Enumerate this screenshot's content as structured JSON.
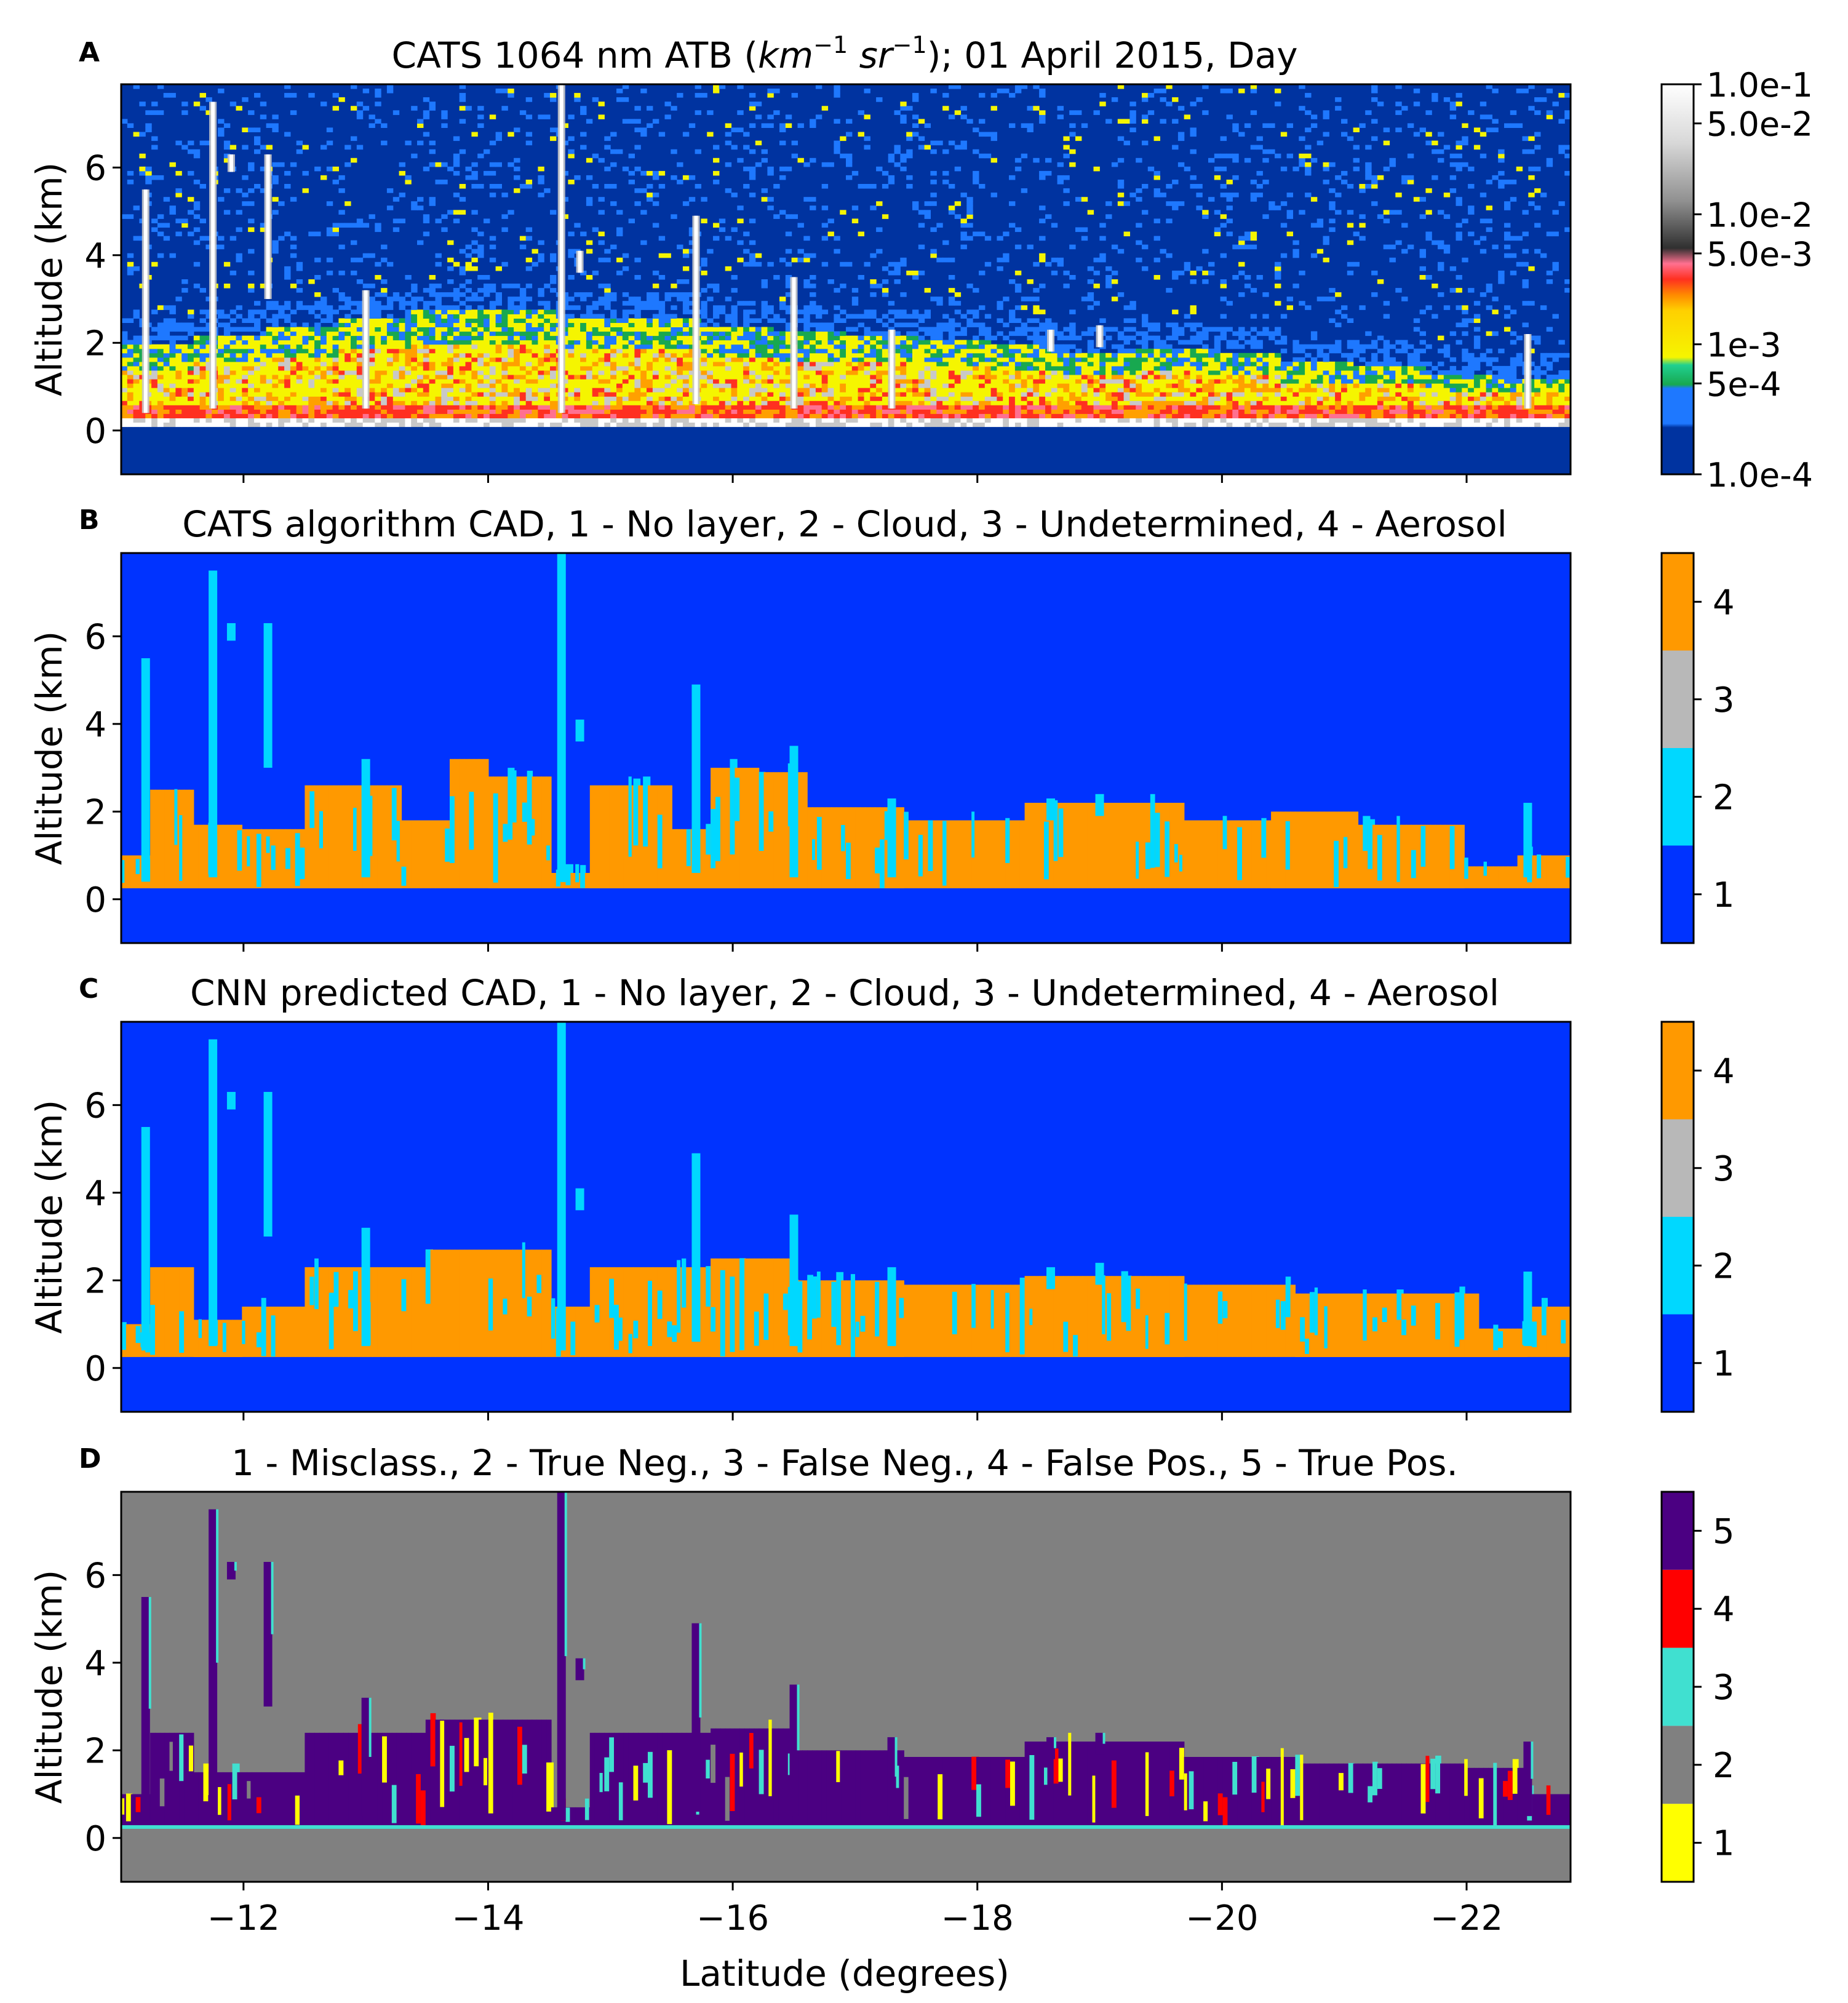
{
  "figure": {
    "xlabel": "Latitude (degrees)",
    "xticks": [
      -12,
      -14,
      -16,
      -18,
      -20,
      -22
    ],
    "xtick_labels": [
      "−12",
      "−14",
      "−16",
      "−18",
      "−20",
      "−22"
    ],
    "xlim": [
      -11,
      -22.85
    ],
    "ylabel": "Altitude (km)",
    "yticks": [
      0,
      2,
      4,
      6
    ],
    "ylim": [
      -1,
      7.9
    ]
  },
  "panels": [
    {
      "letter": "A",
      "title_pre": "CATS 1064 nm ATB (",
      "title_km": "km",
      "title_km_exp": "−1",
      "title_sr": "sr",
      "title_sr_exp": "−1",
      "title_post": "); 01 April 2015, Day",
      "colorbar_labels": [
        "1.0e-1",
        "5.0e-2",
        "1.0e-2",
        "5.0e-3",
        "1e-3",
        "5e-4",
        "1.0e-4"
      ]
    },
    {
      "letter": "B",
      "title": "CATS algorithm CAD, 1 - No layer, 2 - Cloud, 3 - Undetermined, 4 - Aerosol",
      "colorbar_labels": [
        "1",
        "2",
        "3",
        "4"
      ]
    },
    {
      "letter": "C",
      "title": "CNN predicted CAD, 1 - No layer, 2 - Cloud, 3 - Undetermined, 4 - Aerosol",
      "colorbar_labels": [
        "1",
        "2",
        "3",
        "4"
      ]
    },
    {
      "letter": "D",
      "title": "1 - Misclass., 2 - True Neg., 3 - False Neg., 4 - False Pos., 5 - True Pos.",
      "colorbar_labels": [
        "1",
        "2",
        "3",
        "4",
        "5"
      ]
    }
  ],
  "chart_data": [
    {
      "type": "heatmap",
      "panel": "A",
      "variable": "attenuated total backscatter, 1064 nm",
      "x_range": [
        -11,
        -22.85
      ],
      "y_range": [
        -1,
        7.9
      ],
      "scale": "log",
      "colorbar_ticks": [
        0.1,
        0.05,
        0.01,
        0.005,
        0.001,
        0.0005,
        0.0001
      ],
      "colors": [
        "#0033a0",
        "#1e78ff",
        "#18a850",
        "#f5f500",
        "#ffa000",
        "#ff3020",
        "#ff7090",
        "#606060",
        "#c8c8c8",
        "#ffffff"
      ],
      "aerosol_layer_top_km": [
        2.0,
        2.2,
        2.4,
        2.6,
        2.8,
        2.8,
        2.6,
        2.6,
        2.4,
        2.3,
        2.2,
        2.1,
        2.0,
        1.8,
        1.9,
        1.8,
        1.6,
        1.5,
        1.3,
        1.2
      ],
      "cloud_features": [
        {
          "lat": -11.2,
          "alt_bottom": 0.4,
          "alt_top": 5.5
        },
        {
          "lat": -11.75,
          "alt_bottom": 0.5,
          "alt_top": 7.5
        },
        {
          "lat": -11.9,
          "alt_bottom": 5.9,
          "alt_top": 6.3
        },
        {
          "lat": -12.2,
          "alt_bottom": 3.0,
          "alt_top": 6.3
        },
        {
          "lat": -13.0,
          "alt_bottom": 0.5,
          "alt_top": 3.2
        },
        {
          "lat": -14.6,
          "alt_bottom": 0.4,
          "alt_top": 7.9
        },
        {
          "lat": -14.75,
          "alt_bottom": 3.6,
          "alt_top": 4.1
        },
        {
          "lat": -15.7,
          "alt_bottom": 0.6,
          "alt_top": 4.9
        },
        {
          "lat": -16.5,
          "alt_bottom": 0.5,
          "alt_top": 3.5
        },
        {
          "lat": -17.3,
          "alt_bottom": 0.5,
          "alt_top": 2.3
        },
        {
          "lat": -18.6,
          "alt_bottom": 1.8,
          "alt_top": 2.3
        },
        {
          "lat": -19.0,
          "alt_bottom": 1.9,
          "alt_top": 2.4
        },
        {
          "lat": -22.5,
          "alt_bottom": 0.5,
          "alt_top": 2.2
        }
      ]
    },
    {
      "type": "heatmap",
      "panel": "B",
      "classes": {
        "1": "No layer",
        "2": "Cloud",
        "3": "Undetermined",
        "4": "Aerosol"
      },
      "colors": [
        "#0033ff",
        "#00d8ff",
        "#b8b8b8",
        "#ff9900"
      ],
      "aerosol_base_km": 0.25,
      "aerosol_top_segments": [
        {
          "lat_from": -11.0,
          "lat_to": -11.25,
          "top_km": 1.0
        },
        {
          "lat_from": -11.25,
          "lat_to": -11.6,
          "top_km": 2.5
        },
        {
          "lat_from": -11.6,
          "lat_to": -12.0,
          "top_km": 1.7
        },
        {
          "lat_from": -12.0,
          "lat_to": -12.5,
          "top_km": 1.6
        },
        {
          "lat_from": -12.5,
          "lat_to": -13.3,
          "top_km": 2.6
        },
        {
          "lat_from": -13.3,
          "lat_to": -13.7,
          "top_km": 1.8
        },
        {
          "lat_from": -13.7,
          "lat_to": -14.0,
          "top_km": 3.2
        },
        {
          "lat_from": -14.0,
          "lat_to": -14.5,
          "top_km": 2.8
        },
        {
          "lat_from": -14.5,
          "lat_to": -14.85,
          "top_km": 0.6
        },
        {
          "lat_from": -14.85,
          "lat_to": -15.5,
          "top_km": 2.6
        },
        {
          "lat_from": -15.5,
          "lat_to": -15.8,
          "top_km": 1.6
        },
        {
          "lat_from": -15.8,
          "lat_to": -16.2,
          "top_km": 3.0
        },
        {
          "lat_from": -16.2,
          "lat_to": -16.6,
          "top_km": 2.9
        },
        {
          "lat_from": -16.6,
          "lat_to": -17.4,
          "top_km": 2.1
        },
        {
          "lat_from": -17.4,
          "lat_to": -18.4,
          "top_km": 1.8
        },
        {
          "lat_from": -18.4,
          "lat_to": -19.7,
          "top_km": 2.2
        },
        {
          "lat_from": -19.7,
          "lat_to": -20.4,
          "top_km": 1.8
        },
        {
          "lat_from": -20.4,
          "lat_to": -21.1,
          "top_km": 2.0
        },
        {
          "lat_from": -21.1,
          "lat_to": -22.0,
          "top_km": 1.7
        },
        {
          "lat_from": -22.0,
          "lat_to": -22.4,
          "top_km": 0.75
        },
        {
          "lat_from": -22.4,
          "lat_to": -22.85,
          "top_km": 1.0
        }
      ]
    },
    {
      "type": "heatmap",
      "panel": "C",
      "classes": {
        "1": "No layer",
        "2": "Cloud",
        "3": "Undetermined",
        "4": "Aerosol"
      },
      "colors": [
        "#0033ff",
        "#00d8ff",
        "#b8b8b8",
        "#ff9900"
      ],
      "aerosol_base_km": 0.25,
      "aerosol_top_segments": [
        {
          "lat_from": -11.0,
          "lat_to": -11.25,
          "top_km": 1.0
        },
        {
          "lat_from": -11.25,
          "lat_to": -11.6,
          "top_km": 2.3
        },
        {
          "lat_from": -11.6,
          "lat_to": -12.0,
          "top_km": 1.1
        },
        {
          "lat_from": -12.0,
          "lat_to": -12.5,
          "top_km": 1.4
        },
        {
          "lat_from": -12.5,
          "lat_to": -13.5,
          "top_km": 2.3
        },
        {
          "lat_from": -13.5,
          "lat_to": -14.5,
          "top_km": 2.7
        },
        {
          "lat_from": -14.5,
          "lat_to": -14.85,
          "top_km": 1.4
        },
        {
          "lat_from": -14.85,
          "lat_to": -15.8,
          "top_km": 2.3
        },
        {
          "lat_from": -15.8,
          "lat_to": -16.5,
          "top_km": 2.5
        },
        {
          "lat_from": -16.5,
          "lat_to": -17.4,
          "top_km": 2.0
        },
        {
          "lat_from": -17.4,
          "lat_to": -18.4,
          "top_km": 1.9
        },
        {
          "lat_from": -18.4,
          "lat_to": -19.7,
          "top_km": 2.1
        },
        {
          "lat_from": -19.7,
          "lat_to": -20.6,
          "top_km": 1.9
        },
        {
          "lat_from": -20.6,
          "lat_to": -22.1,
          "top_km": 1.7
        },
        {
          "lat_from": -22.1,
          "lat_to": -22.5,
          "top_km": 0.9
        },
        {
          "lat_from": -22.5,
          "lat_to": -22.85,
          "top_km": 1.4
        }
      ]
    },
    {
      "type": "heatmap",
      "panel": "D",
      "classes": {
        "1": "Misclass.",
        "2": "True Neg.",
        "3": "False Neg.",
        "4": "False Pos.",
        "5": "True Pos."
      },
      "colors": [
        "#ffff00",
        "#808080",
        "#40e0d0",
        "#ff0000",
        "#4b0082"
      ],
      "layer_base_km": 0.25,
      "layer_top_segments": [
        {
          "lat_from": -11.0,
          "lat_to": -11.25,
          "top_km": 1.0
        },
        {
          "lat_from": -11.25,
          "lat_to": -11.6,
          "top_km": 2.4
        },
        {
          "lat_from": -11.6,
          "lat_to": -12.0,
          "top_km": 1.5
        },
        {
          "lat_from": -12.0,
          "lat_to": -12.5,
          "top_km": 1.5
        },
        {
          "lat_from": -12.5,
          "lat_to": -13.5,
          "top_km": 2.4
        },
        {
          "lat_from": -13.5,
          "lat_to": -14.5,
          "top_km": 2.7
        },
        {
          "lat_from": -14.5,
          "lat_to": -14.85,
          "top_km": 0.7
        },
        {
          "lat_from": -14.85,
          "lat_to": -15.8,
          "top_km": 2.4
        },
        {
          "lat_from": -15.8,
          "lat_to": -16.5,
          "top_km": 2.5
        },
        {
          "lat_from": -16.5,
          "lat_to": -17.4,
          "top_km": 2.0
        },
        {
          "lat_from": -17.4,
          "lat_to": -18.4,
          "top_km": 1.85
        },
        {
          "lat_from": -18.4,
          "lat_to": -19.7,
          "top_km": 2.2
        },
        {
          "lat_from": -19.7,
          "lat_to": -20.6,
          "top_km": 1.85
        },
        {
          "lat_from": -20.6,
          "lat_to": -22.0,
          "top_km": 1.7
        },
        {
          "lat_from": -22.0,
          "lat_to": -22.5,
          "top_km": 1.6
        },
        {
          "lat_from": -22.5,
          "lat_to": -22.85,
          "top_km": 1.0
        }
      ]
    }
  ]
}
